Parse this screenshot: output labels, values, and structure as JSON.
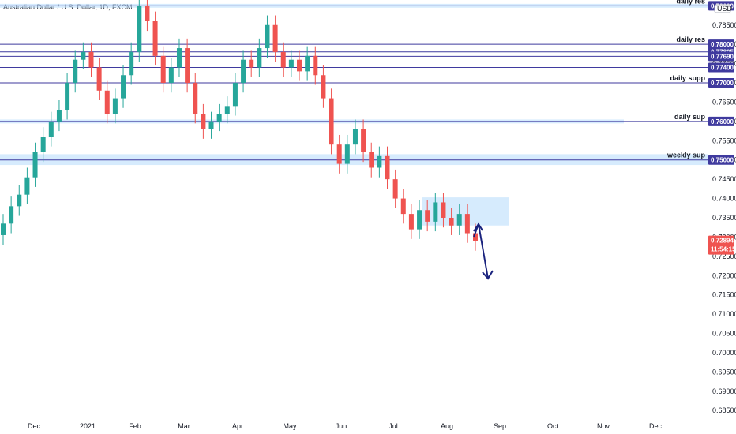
{
  "header": {
    "title": "Australian Dollar / U.S. Dollar, 1D, FXCM",
    "currency_badge": "USD"
  },
  "price_badge": {
    "price": "0.72894",
    "countdown": "11:54:15",
    "color": "#ef5350"
  },
  "colors": {
    "up": "#26a69a",
    "down": "#ef5350",
    "level_line": "#3f3a9e",
    "zone_fill": "#bbdefb",
    "arrow": "#1a237e"
  },
  "chart_data": {
    "type": "candlestick",
    "ylim": [
      0.683,
      0.7915
    ],
    "y_ticks": [
      "0.68500",
      "0.69000",
      "0.69500",
      "0.70000",
      "0.70500",
      "0.71000",
      "0.71500",
      "0.72000",
      "0.72500",
      "0.73000",
      "0.73500",
      "0.74000",
      "0.74500",
      "0.75000",
      "0.75500",
      "0.76000",
      "0.76500",
      "0.77000",
      "0.77500",
      "0.78000",
      "0.78500"
    ],
    "x_labels": [
      "Dec",
      "2021",
      "Feb",
      "Mar",
      "Apr",
      "May",
      "Jun",
      "Jul",
      "Aug",
      "Sep",
      "Oct",
      "Nov",
      "Dec"
    ],
    "current_price": 0.72894,
    "levels": [
      {
        "label": "daily res",
        "price": 0.78,
        "tag": "0.78000"
      },
      {
        "label": "",
        "price": 0.77805,
        "tag": "0.77805"
      },
      {
        "label": "",
        "price": 0.7769,
        "tag": "0.77690"
      },
      {
        "label": "",
        "price": 0.774,
        "tag": "0.77400"
      },
      {
        "label": "daily supp",
        "price": 0.77,
        "tag": "0.77000"
      },
      {
        "label": "daily sup",
        "price": 0.76,
        "tag": "0.76000"
      },
      {
        "label": "weekly sup",
        "price": 0.75,
        "tag": "0.75000"
      },
      {
        "label": "daily res",
        "price": 0.79,
        "tag": "0.79000"
      }
    ],
    "zones": [
      {
        "from": 0.7895,
        "to": 0.7905
      },
      {
        "from": 0.7595,
        "to": 0.7605
      },
      {
        "from": 0.7487,
        "to": 0.7515
      },
      {
        "from": 0.733,
        "to": 0.7403
      }
    ],
    "candles_approx": [
      {
        "x": "Dec",
        "o": 0.7305,
        "c": 0.7335
      },
      {
        "x": "Dec",
        "o": 0.7335,
        "c": 0.738
      },
      {
        "x": "Dec",
        "o": 0.738,
        "c": 0.741
      },
      {
        "x": "Dec",
        "o": 0.741,
        "c": 0.7455
      },
      {
        "x": "Dec",
        "o": 0.7455,
        "c": 0.752
      },
      {
        "x": "Dec",
        "o": 0.752,
        "c": 0.756
      },
      {
        "x": "Dec",
        "o": 0.756,
        "c": 0.76
      },
      {
        "x": "Dec",
        "o": 0.76,
        "c": 0.763
      },
      {
        "x": "2021",
        "o": 0.763,
        "c": 0.77
      },
      {
        "x": "2021",
        "o": 0.77,
        "c": 0.776
      },
      {
        "x": "2021",
        "o": 0.776,
        "c": 0.778
      },
      {
        "x": "2021",
        "o": 0.778,
        "c": 0.774
      },
      {
        "x": "Feb",
        "o": 0.774,
        "c": 0.768
      },
      {
        "x": "Feb",
        "o": 0.768,
        "c": 0.762
      },
      {
        "x": "Feb",
        "o": 0.762,
        "c": 0.766
      },
      {
        "x": "Feb",
        "o": 0.766,
        "c": 0.772
      },
      {
        "x": "Feb",
        "o": 0.772,
        "c": 0.778
      },
      {
        "x": "Mar",
        "o": 0.778,
        "c": 0.79
      },
      {
        "x": "Mar",
        "o": 0.79,
        "c": 0.786
      },
      {
        "x": "Mar",
        "o": 0.786,
        "c": 0.777
      },
      {
        "x": "Mar",
        "o": 0.777,
        "c": 0.77
      },
      {
        "x": "Mar",
        "o": 0.77,
        "c": 0.774
      },
      {
        "x": "Mar",
        "o": 0.774,
        "c": 0.779
      },
      {
        "x": "Mar",
        "o": 0.779,
        "c": 0.77
      },
      {
        "x": "Apr",
        "o": 0.77,
        "c": 0.762
      },
      {
        "x": "Apr",
        "o": 0.762,
        "c": 0.758
      },
      {
        "x": "Apr",
        "o": 0.758,
        "c": 0.76
      },
      {
        "x": "Apr",
        "o": 0.76,
        "c": 0.762
      },
      {
        "x": "Apr",
        "o": 0.762,
        "c": 0.764
      },
      {
        "x": "Apr",
        "o": 0.764,
        "c": 0.77
      },
      {
        "x": "May",
        "o": 0.77,
        "c": 0.776
      },
      {
        "x": "May",
        "o": 0.776,
        "c": 0.774
      },
      {
        "x": "May",
        "o": 0.774,
        "c": 0.779
      },
      {
        "x": "May",
        "o": 0.779,
        "c": 0.785
      },
      {
        "x": "May",
        "o": 0.785,
        "c": 0.778
      },
      {
        "x": "May",
        "o": 0.778,
        "c": 0.774
      },
      {
        "x": "May",
        "o": 0.774,
        "c": 0.776
      },
      {
        "x": "Jun",
        "o": 0.776,
        "c": 0.773
      },
      {
        "x": "Jun",
        "o": 0.773,
        "c": 0.777
      },
      {
        "x": "Jun",
        "o": 0.777,
        "c": 0.772
      },
      {
        "x": "Jun",
        "o": 0.772,
        "c": 0.766
      },
      {
        "x": "Jun",
        "o": 0.766,
        "c": 0.754
      },
      {
        "x": "Jun",
        "o": 0.754,
        "c": 0.749
      },
      {
        "x": "Jul",
        "o": 0.749,
        "c": 0.754
      },
      {
        "x": "Jul",
        "o": 0.754,
        "c": 0.758
      },
      {
        "x": "Jul",
        "o": 0.758,
        "c": 0.752
      },
      {
        "x": "Jul",
        "o": 0.752,
        "c": 0.748
      },
      {
        "x": "Jul",
        "o": 0.748,
        "c": 0.751
      },
      {
        "x": "Jul",
        "o": 0.751,
        "c": 0.745
      },
      {
        "x": "Jul",
        "o": 0.745,
        "c": 0.74
      },
      {
        "x": "Jul",
        "o": 0.74,
        "c": 0.736
      },
      {
        "x": "Aug",
        "o": 0.736,
        "c": 0.732
      },
      {
        "x": "Aug",
        "o": 0.732,
        "c": 0.737
      },
      {
        "x": "Aug",
        "o": 0.737,
        "c": 0.734
      },
      {
        "x": "Aug",
        "o": 0.734,
        "c": 0.739
      },
      {
        "x": "Aug",
        "o": 0.739,
        "c": 0.735
      },
      {
        "x": "Aug",
        "o": 0.735,
        "c": 0.733
      },
      {
        "x": "Aug",
        "o": 0.733,
        "c": 0.736
      },
      {
        "x": "Aug",
        "o": 0.736,
        "c": 0.731
      },
      {
        "x": "Aug",
        "o": 0.731,
        "c": 0.72894
      }
    ]
  }
}
